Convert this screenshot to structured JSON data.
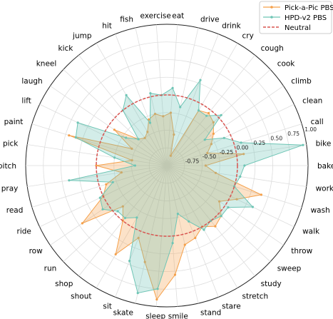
{
  "chart_data": {
    "type": "radar",
    "categories": [
      "eat",
      "drive",
      "drink",
      "cry",
      "cough",
      "cook",
      "climb",
      "clean",
      "call",
      "bike",
      "bake",
      "work",
      "wash",
      "walk",
      "throw",
      "sweep",
      "study",
      "stretch",
      "stare",
      "stand",
      "smile",
      "sleep",
      "skate",
      "sit",
      "shout",
      "shop",
      "run",
      "row",
      "ride",
      "read",
      "pray",
      "pitch",
      "pick",
      "paint",
      "lift",
      "laugh",
      "kneel",
      "kick",
      "jump",
      "hit",
      "fish",
      "exercise"
    ],
    "radial_ticks": [
      "-0.75",
      "-0.50",
      "-0.25",
      "0.00",
      "0.25",
      "0.50",
      "0.75",
      "1.00"
    ],
    "rlim": [
      -1.0,
      1.0
    ],
    "neutral_value": 0.0,
    "series": [
      {
        "name": "Pick-a-Pic PBS",
        "color": "#f5a04a",
        "values": [
          -0.25,
          -0.55,
          -0.85,
          -0.1,
          -0.05,
          -0.1,
          -0.2,
          -0.3,
          -0.4,
          0.1,
          -0.45,
          -0.3,
          0.4,
          0.1,
          -0.1,
          0.05,
          0.1,
          0.0,
          0.1,
          0.15,
          0.55,
          0.9,
          0.4,
          0.1,
          0.45,
          0.0,
          -0.15,
          0.45,
          0.0,
          -0.1,
          -0.35,
          0.0,
          -0.5,
          0.45,
          -0.45,
          -0.1,
          -0.45,
          -0.5,
          -0.45,
          -0.3,
          -0.25,
          -0.3
        ]
      },
      {
        "name": "HPD-v2 PBS",
        "color": "#6ec5b5",
        "values": [
          0.1,
          -0.15,
          0.3,
          -0.1,
          -0.1,
          0.05,
          -0.35,
          -0.1,
          0.1,
          0.95,
          0.1,
          0.05,
          0.0,
          0.35,
          0.05,
          0.05,
          0.0,
          0.05,
          -0.15,
          -0.3,
          0.1,
          0.75,
          0.85,
          0.45,
          -0.15,
          -0.05,
          -0.05,
          0.1,
          0.05,
          -0.2,
          0.4,
          -0.55,
          -0.25,
          0.35,
          0.4,
          -0.3,
          -0.45,
          0.0,
          0.15,
          -0.35,
          0.05,
          0.0
        ]
      }
    ],
    "legend": {
      "position": "top-right",
      "entries": [
        "Pick-a-Pic PBS",
        "HPD-v2 PBS",
        "Neutral"
      ]
    },
    "neutral_label": "Neutral",
    "neutral_color": "#d9534f"
  }
}
